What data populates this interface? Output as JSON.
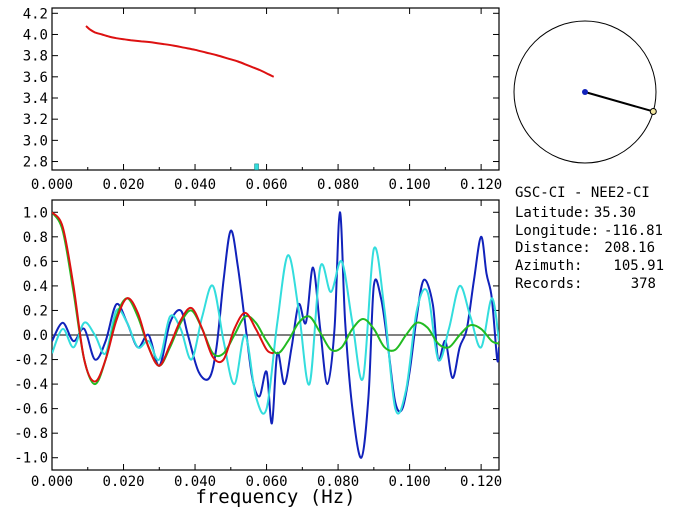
{
  "station": {
    "pair": "GSC-CI - NEE2-CI",
    "latitude_label": "Latitude:",
    "latitude": "35.30",
    "longitude_label": "Longitude:",
    "longitude": "-116.81",
    "distance_label": "Distance:",
    "distance": "208.16",
    "azimuth_label": "Azimuth:",
    "azimuth": "105.91",
    "records_label": "Records:",
    "records": "378"
  },
  "colors": {
    "red": "#dd1111",
    "green": "#22bb22",
    "blue": "#1122bb",
    "cyan": "#33dddd",
    "ring": "#000000",
    "marker_fill": "#f2e6a0"
  },
  "azimuth_dial": {
    "azimuth_deg": 105.91
  },
  "chart_data": [
    {
      "type": "line",
      "panel": "top",
      "xlim": [
        0.0,
        0.125
      ],
      "ylim": [
        2.72,
        4.25
      ],
      "x_ticks": [
        "0.000",
        "0.020",
        "0.040",
        "0.060",
        "0.080",
        "0.100",
        "0.120"
      ],
      "y_ticks": [
        "2.8",
        "3.0",
        "3.2",
        "3.4",
        "3.6",
        "3.8",
        "4.0",
        "4.2"
      ],
      "x_tick_values": [
        0,
        0.02,
        0.04,
        0.06,
        0.08,
        0.1,
        0.12
      ],
      "y_tick_values": [
        2.8,
        3.0,
        3.2,
        3.4,
        3.6,
        3.8,
        4.0,
        4.2
      ],
      "series": [
        {
          "color": "red",
          "x": [
            0.0095,
            0.0105,
            0.012,
            0.014,
            0.016,
            0.018,
            0.02,
            0.022,
            0.025,
            0.028,
            0.031,
            0.034,
            0.037,
            0.04,
            0.043,
            0.046,
            0.049,
            0.052,
            0.055,
            0.058,
            0.0605,
            0.062
          ],
          "y": [
            4.08,
            4.05,
            4.02,
            4.0,
            3.98,
            3.965,
            3.955,
            3.945,
            3.935,
            3.925,
            3.91,
            3.895,
            3.875,
            3.855,
            3.83,
            3.805,
            3.775,
            3.745,
            3.705,
            3.665,
            3.625,
            3.6
          ]
        }
      ],
      "markers": [
        {
          "color": "cyan",
          "x": 0.0572,
          "y": 2.74
        }
      ]
    },
    {
      "type": "line",
      "panel": "bottom",
      "xlim": [
        0.0,
        0.125
      ],
      "ylim": [
        -1.1,
        1.1
      ],
      "x_ticks": [
        "0.000",
        "0.020",
        "0.040",
        "0.060",
        "0.080",
        "0.100",
        "0.120"
      ],
      "y_ticks": [
        "1.0",
        "0.8",
        "0.6",
        "0.4",
        "0.2",
        "0.0",
        "-0.2",
        "-0.4",
        "-0.6",
        "-0.8",
        "-1.0"
      ],
      "x_tick_values": [
        0,
        0.02,
        0.04,
        0.06,
        0.08,
        0.1,
        0.12
      ],
      "y_tick_values": [
        1.0,
        0.8,
        0.6,
        0.4,
        0.2,
        0.0,
        -0.2,
        -0.4,
        -0.6,
        -0.8,
        -1.0
      ],
      "xlabel": "frequency (Hz)",
      "zero_line": true,
      "series": [
        {
          "color": "blue",
          "x": [
            0.0,
            0.003,
            0.006,
            0.009,
            0.012,
            0.015,
            0.018,
            0.021,
            0.024,
            0.027,
            0.03,
            0.033,
            0.036,
            0.038,
            0.041,
            0.044,
            0.046,
            0.048,
            0.05,
            0.052,
            0.054,
            0.056,
            0.058,
            0.06,
            0.0615,
            0.063,
            0.065,
            0.067,
            0.069,
            0.071,
            0.073,
            0.075,
            0.077,
            0.079,
            0.0805,
            0.082,
            0.084,
            0.0865,
            0.0885,
            0.09,
            0.092,
            0.094,
            0.096,
            0.098,
            0.1,
            0.102,
            0.104,
            0.1065,
            0.108,
            0.11,
            0.112,
            0.114,
            0.116,
            0.118,
            0.12,
            0.1215,
            0.123,
            0.1245,
            0.125
          ],
          "y": [
            -0.05,
            0.1,
            -0.05,
            0.05,
            -0.2,
            -0.05,
            0.25,
            0.1,
            -0.1,
            0.0,
            -0.25,
            0.1,
            0.2,
            0.0,
            -0.3,
            -0.35,
            -0.1,
            0.45,
            0.85,
            0.55,
            0.1,
            -0.35,
            -0.5,
            -0.3,
            -0.72,
            -0.15,
            -0.4,
            -0.1,
            0.25,
            0.1,
            0.55,
            0.05,
            -0.4,
            0.05,
            1.0,
            0.1,
            -0.6,
            -1.0,
            -0.5,
            0.4,
            0.3,
            -0.1,
            -0.55,
            -0.6,
            -0.3,
            0.15,
            0.45,
            0.25,
            -0.2,
            -0.05,
            -0.35,
            -0.1,
            0.05,
            0.45,
            0.8,
            0.5,
            0.3,
            -0.2,
            -0.1
          ]
        },
        {
          "color": "cyan",
          "x": [
            0.0,
            0.003,
            0.006,
            0.009,
            0.012,
            0.015,
            0.018,
            0.021,
            0.024,
            0.027,
            0.03,
            0.033,
            0.036,
            0.039,
            0.042,
            0.045,
            0.048,
            0.051,
            0.054,
            0.057,
            0.06,
            0.063,
            0.066,
            0.069,
            0.072,
            0.075,
            0.078,
            0.081,
            0.084,
            0.087,
            0.09,
            0.093,
            0.096,
            0.099,
            0.102,
            0.105,
            0.108,
            0.111,
            0.114,
            0.117,
            0.12,
            0.123,
            0.125
          ],
          "y": [
            -0.15,
            0.05,
            -0.1,
            0.1,
            0.0,
            -0.15,
            0.2,
            0.1,
            -0.1,
            -0.05,
            -0.2,
            0.15,
            0.05,
            -0.2,
            0.15,
            0.4,
            -0.05,
            -0.4,
            0.0,
            -0.5,
            -0.6,
            0.1,
            0.65,
            0.2,
            -0.4,
            0.55,
            0.35,
            0.6,
            0.1,
            -0.35,
            0.7,
            0.2,
            -0.6,
            -0.45,
            0.2,
            0.35,
            -0.2,
            0.05,
            0.4,
            0.15,
            -0.1,
            0.3,
            -0.05
          ]
        },
        {
          "color": "green",
          "x": [
            0.0,
            0.003,
            0.006,
            0.009,
            0.012,
            0.015,
            0.018,
            0.021,
            0.024,
            0.027,
            0.03,
            0.033,
            0.036,
            0.039,
            0.042,
            0.045,
            0.048,
            0.051,
            0.054,
            0.057,
            0.06,
            0.063,
            0.066,
            0.069,
            0.072,
            0.075,
            0.078,
            0.081,
            0.084,
            0.087,
            0.09,
            0.093,
            0.096,
            0.099,
            0.102,
            0.105,
            0.108,
            0.111,
            0.114,
            0.117,
            0.12,
            0.123,
            0.125
          ],
          "y": [
            1.0,
            0.85,
            0.35,
            -0.2,
            -0.4,
            -0.2,
            0.15,
            0.3,
            0.15,
            -0.1,
            -0.25,
            -0.1,
            0.1,
            0.2,
            0.05,
            -0.15,
            -0.15,
            0.0,
            0.15,
            0.1,
            -0.05,
            -0.15,
            -0.05,
            0.1,
            0.15,
            0.02,
            -0.12,
            -0.1,
            0.05,
            0.13,
            0.05,
            -0.1,
            -0.12,
            0.0,
            0.1,
            0.06,
            -0.07,
            -0.1,
            0.0,
            0.08,
            0.05,
            -0.05,
            -0.07
          ]
        },
        {
          "color": "red",
          "x": [
            0.0,
            0.003,
            0.006,
            0.009,
            0.012,
            0.015,
            0.018,
            0.021,
            0.024,
            0.027,
            0.03,
            0.033,
            0.036,
            0.039,
            0.042,
            0.045,
            0.048,
            0.051,
            0.054,
            0.057,
            0.06,
            0.062
          ],
          "y": [
            1.0,
            0.88,
            0.4,
            -0.2,
            -0.38,
            -0.2,
            0.12,
            0.3,
            0.18,
            -0.1,
            -0.25,
            -0.08,
            0.12,
            0.22,
            0.05,
            -0.18,
            -0.2,
            0.05,
            0.18,
            0.05,
            -0.12,
            -0.15
          ]
        }
      ]
    }
  ]
}
